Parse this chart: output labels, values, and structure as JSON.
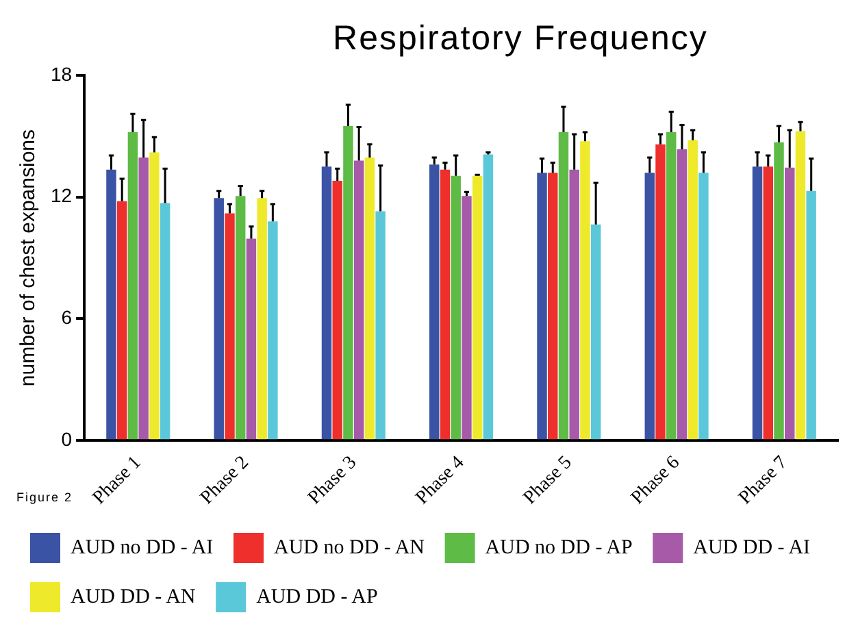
{
  "chart_data": {
    "type": "bar",
    "title": "Respiratory Frequency",
    "ylabel": "number of chest expansions",
    "annotations": [
      "Figure 2"
    ],
    "categories": [
      "Phase 1",
      "Phase 2",
      "Phase 3",
      "Phase 4",
      "Phase 5",
      "Phase 6",
      "Phase 7"
    ],
    "ylim": [
      0,
      18
    ],
    "yticks": [
      0,
      6,
      12,
      18
    ],
    "grid": false,
    "legend": "bottom",
    "series": [
      {
        "name": "AUD no DD - AI",
        "color": "#3a53a4",
        "values": [
          13.35,
          11.95,
          13.5,
          13.6,
          13.2,
          13.2,
          13.5
        ],
        "errors": [
          [
            13.35,
            14.05
          ],
          [
            11.95,
            12.3
          ],
          [
            13.5,
            14.2
          ],
          [
            13.6,
            13.95
          ],
          [
            13.2,
            13.9
          ],
          [
            13.2,
            13.95
          ],
          [
            13.5,
            14.2
          ]
        ]
      },
      {
        "name": "AUD no DD - AN",
        "color": "#ee2f2c",
        "values": [
          11.8,
          11.2,
          12.8,
          13.35,
          13.2,
          14.6,
          13.5
        ],
        "errors": [
          [
            11.8,
            12.9
          ],
          [
            11.2,
            11.65
          ],
          [
            12.8,
            13.4
          ],
          [
            13.35,
            13.7
          ],
          [
            13.2,
            13.7
          ],
          [
            14.6,
            15.1
          ],
          [
            13.5,
            14.05
          ]
        ]
      },
      {
        "name": "AUD no DD - AP",
        "color": "#5dbb46",
        "values": [
          15.2,
          12.05,
          15.5,
          13.05,
          15.2,
          15.2,
          14.7
        ],
        "errors": [
          [
            15.2,
            16.1
          ],
          [
            12.05,
            12.55
          ],
          [
            15.5,
            16.55
          ],
          [
            13.05,
            14.05
          ],
          [
            15.2,
            16.45
          ],
          [
            15.2,
            16.2
          ],
          [
            14.7,
            15.5
          ]
        ]
      },
      {
        "name": "AUD DD - AI",
        "color": "#a65aa8",
        "values": [
          13.95,
          9.95,
          13.8,
          12.05,
          13.35,
          14.35,
          13.45
        ],
        "errors": [
          [
            13.95,
            15.8
          ],
          [
            9.95,
            10.55
          ],
          [
            13.8,
            15.45
          ],
          [
            12.05,
            12.25
          ],
          [
            13.35,
            15.1
          ],
          [
            14.35,
            15.55
          ],
          [
            13.45,
            15.3
          ]
        ]
      },
      {
        "name": "AUD DD - AN",
        "color": "#eeea2b",
        "values": [
          14.2,
          11.95,
          13.95,
          13.05,
          14.75,
          14.8,
          15.25
        ],
        "errors": [
          [
            14.2,
            14.95
          ],
          [
            11.95,
            12.3
          ],
          [
            13.95,
            14.6
          ],
          [
            13.05,
            13.1
          ],
          [
            14.75,
            15.2
          ],
          [
            14.8,
            15.3
          ],
          [
            15.25,
            15.7
          ]
        ]
      },
      {
        "name": "AUD DD - AP",
        "color": "#5bc8da",
        "values": [
          11.7,
          10.8,
          11.3,
          14.1,
          10.65,
          13.2,
          12.3
        ],
        "errors": [
          [
            11.7,
            13.4
          ],
          [
            10.8,
            11.65
          ],
          [
            11.3,
            13.55
          ],
          [
            14.1,
            14.2
          ],
          [
            10.65,
            12.7
          ],
          [
            13.2,
            14.2
          ],
          [
            12.3,
            13.9
          ]
        ]
      }
    ]
  }
}
